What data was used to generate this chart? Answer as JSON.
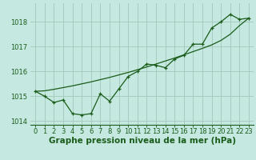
{
  "title": "Graphe pression niveau de la mer (hPa)",
  "bg_color": "#c5e8e0",
  "line_color": "#1a5c1a",
  "grid_color": "#a0c8b8",
  "hours": [
    0,
    1,
    2,
    3,
    4,
    5,
    6,
    7,
    8,
    9,
    10,
    11,
    12,
    13,
    14,
    15,
    16,
    17,
    18,
    19,
    20,
    21,
    22,
    23
  ],
  "jagged_line": [
    1015.2,
    1015.0,
    1014.75,
    1014.85,
    1014.3,
    1014.25,
    1014.3,
    1015.1,
    1014.8,
    1015.3,
    1015.8,
    1016.0,
    1016.3,
    1016.25,
    1016.15,
    1016.5,
    1016.65,
    1017.1,
    1017.1,
    1017.75,
    1018.0,
    1018.3,
    1018.1,
    1018.15
  ],
  "smooth_line": [
    1015.2,
    1015.22,
    1015.28,
    1015.35,
    1015.42,
    1015.5,
    1015.58,
    1015.67,
    1015.76,
    1015.86,
    1015.96,
    1016.07,
    1016.18,
    1016.3,
    1016.42,
    1016.54,
    1016.67,
    1016.8,
    1016.93,
    1017.07,
    1017.25,
    1017.5,
    1017.85,
    1018.15
  ],
  "ylim_min": 1013.85,
  "ylim_max": 1018.75,
  "yticks": [
    1014,
    1015,
    1016,
    1017,
    1018
  ],
  "title_fontsize": 7.5,
  "tick_fontsize": 6.0,
  "marker_size": 3.5,
  "linewidth": 0.9
}
